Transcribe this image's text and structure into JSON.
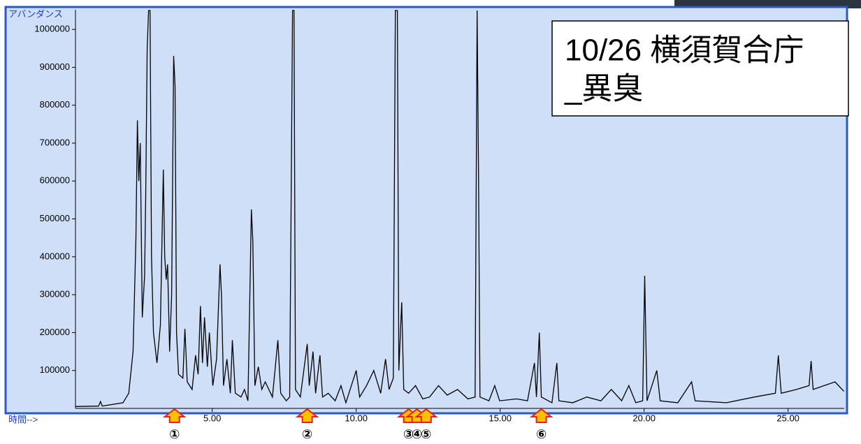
{
  "chart_data": {
    "type": "line",
    "ylabel": "アバンダンス",
    "xlabel": "時間-->",
    "annotation": [
      "10/26 横須賀合庁",
      "_異臭"
    ],
    "color": "#000000",
    "xlim": [
      0.25,
      26.95
    ],
    "ylim": [
      0,
      1050000
    ],
    "xticks": [
      {
        "value": 5,
        "label": "5.00"
      },
      {
        "value": 10,
        "label": "10.00"
      },
      {
        "value": 15,
        "label": "15.00"
      },
      {
        "value": 20,
        "label": "20.00"
      },
      {
        "value": 25,
        "label": "25.00"
      }
    ],
    "yticks": [
      100000,
      200000,
      300000,
      400000,
      500000,
      600000,
      700000,
      800000,
      900000,
      1000000
    ],
    "markers": [
      {
        "x": 3.69,
        "label": "①"
      },
      {
        "x": 8.3,
        "label": "②"
      },
      {
        "x": 11.82,
        "label": "③"
      },
      {
        "x": 12.11,
        "label": "④"
      },
      {
        "x": 12.43,
        "label": "⑤"
      },
      {
        "x": 16.43,
        "label": "⑥"
      }
    ],
    "x": [
      0.25,
      1.05,
      1.12,
      1.18,
      1.9,
      2.1,
      2.25,
      2.35,
      2.4,
      2.45,
      2.5,
      2.57,
      2.65,
      2.69,
      2.74,
      2.79,
      2.84,
      2.89,
      2.96,
      3.08,
      3.2,
      3.3,
      3.35,
      3.4,
      3.45,
      3.52,
      3.59,
      3.66,
      3.71,
      3.76,
      3.83,
      3.98,
      4.05,
      4.13,
      4.3,
      4.42,
      4.51,
      4.59,
      4.66,
      4.73,
      4.83,
      4.9,
      5.02,
      5.15,
      5.27,
      5.32,
      5.39,
      5.51,
      5.63,
      5.7,
      5.8,
      6.0,
      6.12,
      6.24,
      6.36,
      6.41,
      6.48,
      6.6,
      6.72,
      6.84,
      7.09,
      7.28,
      7.38,
      7.57,
      7.69,
      7.79,
      7.84,
      7.89,
      8.06,
      8.3,
      8.37,
      8.5,
      8.59,
      8.74,
      8.83,
      9.03,
      9.27,
      9.47,
      9.64,
      10.0,
      10.12,
      10.36,
      10.61,
      10.85,
      11.02,
      11.14,
      11.29,
      11.36,
      11.43,
      11.48,
      11.58,
      11.65,
      11.82,
      12.06,
      12.31,
      12.55,
      12.86,
      13.16,
      13.52,
      13.88,
      14.13,
      14.2,
      14.25,
      14.3,
      14.61,
      14.81,
      14.98,
      15.58,
      15.95,
      16.19,
      16.26,
      16.36,
      16.43,
      16.8,
      16.97,
      17.04,
      17.52,
      18.01,
      18.5,
      18.86,
      19.22,
      19.47,
      19.71,
      19.95,
      20.02,
      20.1,
      20.44,
      20.56,
      21.17,
      21.65,
      21.77,
      22.86,
      23.83,
      24.56,
      24.66,
      24.76,
      25.29,
      25.73,
      25.8,
      25.87,
      26.63,
      26.94
    ],
    "values": [
      5000,
      6000,
      18000,
      6000,
      15000,
      40000,
      150000,
      450000,
      760000,
      600000,
      700000,
      240000,
      350000,
      560000,
      950000,
      1050000,
      1050000,
      400000,
      200000,
      120000,
      220000,
      630000,
      400000,
      340000,
      380000,
      150000,
      300000,
      930000,
      850000,
      200000,
      90000,
      80000,
      210000,
      70000,
      50000,
      140000,
      90000,
      270000,
      120000,
      240000,
      110000,
      200000,
      60000,
      130000,
      380000,
      300000,
      60000,
      130000,
      40000,
      180000,
      40000,
      30000,
      50000,
      20000,
      525000,
      440000,
      60000,
      110000,
      50000,
      70000,
      30000,
      180000,
      40000,
      20000,
      30000,
      1050000,
      1050000,
      50000,
      30000,
      170000,
      60000,
      150000,
      40000,
      140000,
      30000,
      40000,
      20000,
      60000,
      15000,
      100000,
      30000,
      60000,
      100000,
      40000,
      130000,
      50000,
      80000,
      1050000,
      1050000,
      100000,
      280000,
      50000,
      40000,
      60000,
      25000,
      30000,
      60000,
      35000,
      50000,
      25000,
      30000,
      1050000,
      600000,
      30000,
      20000,
      60000,
      20000,
      25000,
      20000,
      120000,
      30000,
      200000,
      30000,
      15000,
      120000,
      20000,
      15000,
      30000,
      20000,
      50000,
      20000,
      60000,
      15000,
      20000,
      350000,
      20000,
      100000,
      20000,
      15000,
      70000,
      20000,
      15000,
      30000,
      40000,
      140000,
      40000,
      50000,
      60000,
      125000,
      50000,
      70000,
      45000
    ]
  }
}
